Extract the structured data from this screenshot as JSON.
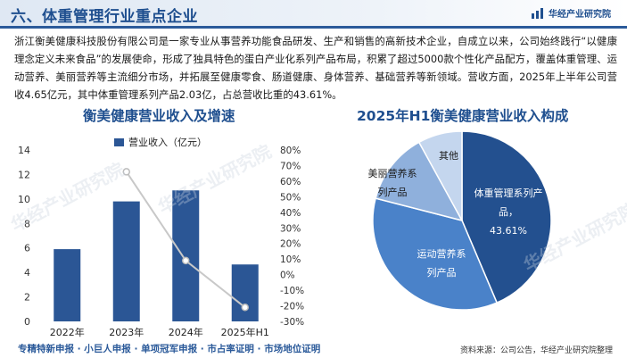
{
  "header": {
    "section_title": "六、体重管理行业重点企业",
    "brand": "华经产业研究院"
  },
  "intro_text": "浙江衡美健康科技股份有限公司是一家专业从事营养功能食品研发、生产和销售的高新技术企业，自成立以来，公司始终践行“以健康理念定义未来食品”的发展使命，形成了独具特色的蛋白产业化系列产品布局，积累了超过5000款个性化产品配方，覆盖体重管理、运动营养、美丽营养等主流细分市场，并拓展至健康零食、肠道健康、身体营养、基础营养等新领域。营收方面，2025年上半年公司营收4.65亿元，其中体重管理系列产品2.03亿，占总营收比重的43.61%。",
  "watermark": "华经产业研究院",
  "footer": {
    "left": "专精特新申报 · 小巨人申报 · 单项冠军申报 · 市占率证明 · 市场地位证明",
    "right": "资料来源：公司公告，华经产业研究院整理"
  },
  "chart_data": [
    {
      "type": "bar",
      "title": "衡美健康营业收入及增速",
      "legend": "营业收入（亿元）",
      "categories": [
        "2022年",
        "2023年",
        "2024年",
        "2025年H1"
      ],
      "values": [
        5.9,
        9.8,
        10.7,
        4.65
      ],
      "ylim": [
        0,
        14
      ],
      "yticks": [
        "0",
        "2",
        "4",
        "6",
        "8",
        "10",
        "12",
        "14"
      ],
      "y2lim": [
        -30,
        80
      ],
      "y2ticks": [
        "-30%",
        "-20%",
        "-10%",
        "0%",
        "10%",
        "20%",
        "30%",
        "40%",
        "50%",
        "60%",
        "70%",
        "80%"
      ],
      "growth": [
        null,
        66,
        9,
        -21
      ],
      "colors": {
        "bar": "#2b5695",
        "line": "#c8c8c8"
      }
    },
    {
      "type": "pie",
      "title": "2025年H1衡美健康营业收入构成",
      "slices": [
        {
          "label": "体重管理系列产品，",
          "value_label": "43.61%",
          "value": 43.61,
          "color": "#23508f"
        },
        {
          "label": "运动营养系列产品",
          "value": 35.4,
          "color": "#4a82c9"
        },
        {
          "label": "美丽营养系列产品",
          "value": 13.0,
          "color": "#8fb0dc"
        },
        {
          "label": "其他",
          "value": 8.0,
          "color": "#c4d6ee"
        }
      ]
    }
  ]
}
